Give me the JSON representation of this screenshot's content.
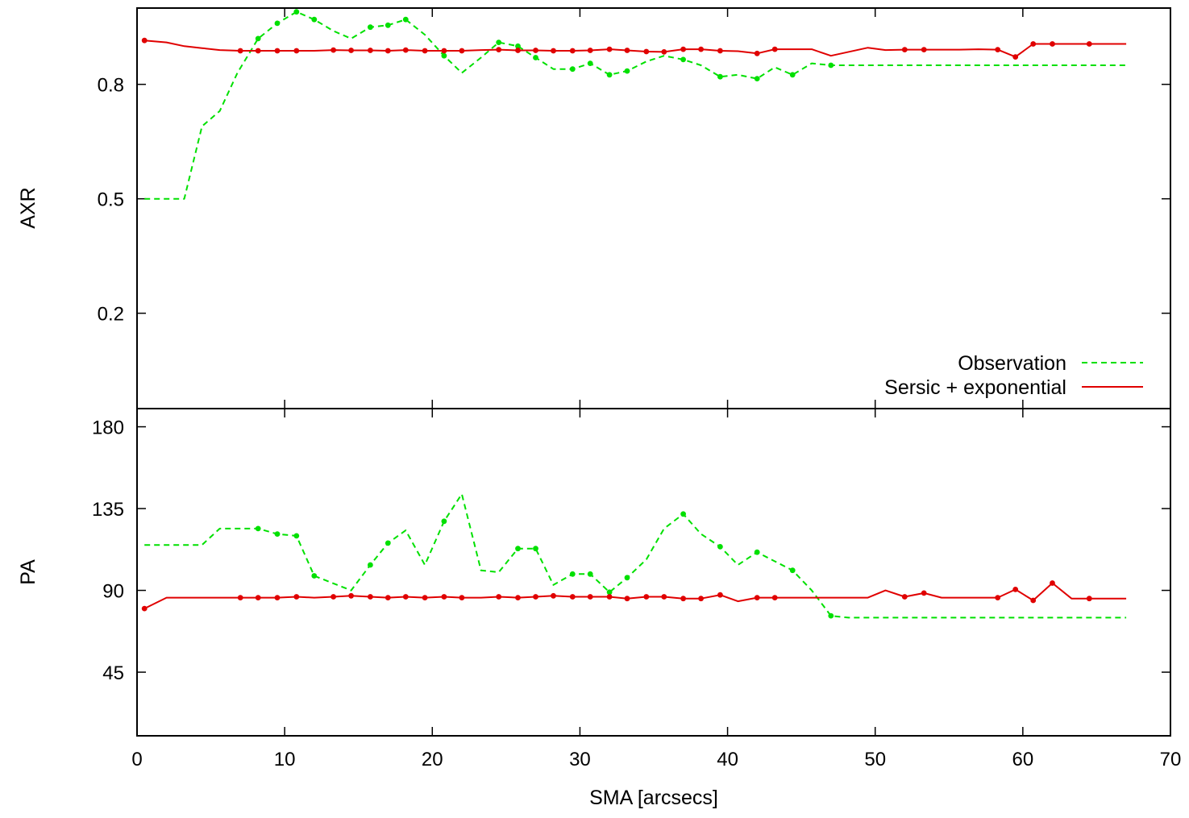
{
  "chart_data": [
    {
      "type": "line",
      "ylabel": "AXR",
      "xlabel": "",
      "xlim": [
        0,
        70
      ],
      "ylim": [
        -0.05,
        1.0
      ],
      "yticks": [
        0.2,
        0.5,
        0.8
      ],
      "ytick_labels": [
        "0.2",
        "0.5",
        "0.8"
      ],
      "xticks": [
        0,
        10,
        20,
        30,
        40,
        50,
        60,
        70
      ],
      "grid": false,
      "legend": "bottom-right",
      "legend_labels": [
        "Observation",
        "Sersic + exponential"
      ],
      "series": [
        {
          "name": "Observation",
          "color": "#00e000",
          "style": "dashed",
          "x": [
            0.5,
            3.2,
            4.4,
            5.6,
            6.8,
            8.2,
            9.5,
            10.8,
            12.0,
            13.3,
            14.5,
            15.8,
            17.0,
            18.2,
            19.5,
            20.8,
            22.0,
            23.3,
            24.5,
            25.8,
            27.0,
            28.2,
            29.5,
            30.7,
            32.0,
            33.2,
            34.5,
            35.7,
            37.0,
            38.2,
            39.5,
            40.7,
            42.0,
            43.2,
            44.4,
            45.7,
            47.0,
            67.0
          ],
          "y": [
            0.5,
            0.5,
            0.69,
            0.73,
            0.83,
            0.92,
            0.96,
            0.99,
            0.97,
            0.94,
            0.92,
            0.95,
            0.955,
            0.97,
            0.93,
            0.875,
            0.83,
            0.87,
            0.91,
            0.9,
            0.87,
            0.84,
            0.84,
            0.855,
            0.825,
            0.835,
            0.86,
            0.875,
            0.865,
            0.85,
            0.82,
            0.825,
            0.815,
            0.845,
            0.825,
            0.855,
            0.85,
            0.85
          ],
          "markers_x": [
            8.2,
            9.5,
            10.8,
            12.0,
            15.8,
            17.0,
            18.2,
            20.8,
            24.5,
            25.8,
            27.0,
            29.5,
            30.7,
            32.0,
            33.2,
            37.0,
            39.5,
            42.0,
            44.4,
            47.0
          ],
          "markers_y": [
            0.92,
            0.96,
            0.99,
            0.97,
            0.95,
            0.955,
            0.97,
            0.875,
            0.91,
            0.9,
            0.87,
            0.84,
            0.855,
            0.825,
            0.835,
            0.865,
            0.82,
            0.815,
            0.825,
            0.85
          ]
        },
        {
          "name": "Sersic + exponential",
          "color": "#e00000",
          "style": "solid",
          "x": [
            0.5,
            2.0,
            3.2,
            4.4,
            5.6,
            7.0,
            8.2,
            9.5,
            10.8,
            12.0,
            13.3,
            14.5,
            15.8,
            17.0,
            18.2,
            19.5,
            20.8,
            22.0,
            23.3,
            24.5,
            25.8,
            27.0,
            28.2,
            29.5,
            30.7,
            32.0,
            33.2,
            34.5,
            35.7,
            37.0,
            38.2,
            39.5,
            40.7,
            42.0,
            43.2,
            44.4,
            45.7,
            47.0,
            49.5,
            50.7,
            52.0,
            53.3,
            54.5,
            55.7,
            57.0,
            58.3,
            59.5,
            60.7,
            62.0,
            63.3,
            64.5,
            65.7,
            67.0
          ],
          "y": [
            0.915,
            0.91,
            0.9,
            0.895,
            0.89,
            0.888,
            0.888,
            0.888,
            0.888,
            0.888,
            0.89,
            0.889,
            0.889,
            0.888,
            0.89,
            0.888,
            0.888,
            0.888,
            0.89,
            0.891,
            0.889,
            0.889,
            0.888,
            0.888,
            0.889,
            0.892,
            0.889,
            0.886,
            0.885,
            0.892,
            0.892,
            0.888,
            0.887,
            0.881,
            0.892,
            0.892,
            0.892,
            0.875,
            0.896,
            0.89,
            0.891,
            0.891,
            0.891,
            0.891,
            0.892,
            0.891,
            0.872,
            0.906,
            0.906,
            0.906,
            0.906,
            0.906,
            0.906
          ],
          "markers_x": [
            0.5,
            7.0,
            8.2,
            9.5,
            10.8,
            13.3,
            14.5,
            15.8,
            17.0,
            18.2,
            19.5,
            20.8,
            22.0,
            24.5,
            25.8,
            27.0,
            28.2,
            29.5,
            30.7,
            32.0,
            33.2,
            34.5,
            35.7,
            37.0,
            38.2,
            39.5,
            42.0,
            43.2,
            52.0,
            53.3,
            58.3,
            59.5,
            60.7,
            62.0,
            64.5
          ],
          "markers_y": [
            0.915,
            0.888,
            0.888,
            0.888,
            0.888,
            0.89,
            0.889,
            0.889,
            0.888,
            0.89,
            0.888,
            0.888,
            0.888,
            0.891,
            0.889,
            0.889,
            0.888,
            0.888,
            0.889,
            0.892,
            0.889,
            0.886,
            0.885,
            0.892,
            0.892,
            0.888,
            0.881,
            0.892,
            0.891,
            0.891,
            0.891,
            0.872,
            0.906,
            0.906,
            0.906
          ]
        }
      ]
    },
    {
      "type": "line",
      "ylabel": "PA",
      "xlabel": "SMA [arcsecs]",
      "xlim": [
        0,
        70
      ],
      "ylim": [
        10,
        190
      ],
      "yticks": [
        45,
        90,
        135,
        180
      ],
      "ytick_labels": [
        "45",
        "90",
        "135",
        "180"
      ],
      "xticks": [
        0,
        10,
        20,
        30,
        40,
        50,
        60,
        70
      ],
      "xtick_labels": [
        "0",
        "10",
        "20",
        "30",
        "40",
        "50",
        "60",
        "70"
      ],
      "grid": false,
      "series": [
        {
          "name": "Observation",
          "color": "#00e000",
          "style": "dashed",
          "x": [
            0.5,
            4.4,
            5.6,
            7.0,
            8.2,
            9.5,
            10.8,
            12.0,
            14.5,
            15.8,
            17.0,
            18.2,
            19.5,
            20.8,
            22.0,
            23.3,
            24.5,
            25.8,
            27.0,
            28.2,
            29.5,
            30.7,
            32.0,
            33.2,
            34.5,
            35.7,
            37.0,
            38.2,
            39.5,
            40.7,
            42.0,
            43.2,
            44.4,
            45.7,
            47.0,
            48.2,
            67.0
          ],
          "y": [
            115,
            115,
            124,
            124,
            124,
            121,
            120,
            98,
            90,
            104,
            116,
            123,
            104,
            128,
            143,
            101,
            100,
            113,
            113,
            93,
            99,
            99,
            89,
            97,
            107,
            124,
            132,
            121,
            114,
            104,
            111,
            106,
            101,
            90,
            76,
            75,
            75
          ],
          "markers_x": [
            8.2,
            9.5,
            10.8,
            12.0,
            15.8,
            17.0,
            20.8,
            25.8,
            27.0,
            29.5,
            30.7,
            32.0,
            33.2,
            37.0,
            39.5,
            42.0,
            44.4,
            47.0
          ],
          "markers_y": [
            124,
            121,
            120,
            98,
            104,
            116,
            128,
            113,
            113,
            99,
            99,
            89,
            97,
            132,
            114,
            111,
            101,
            76
          ]
        },
        {
          "name": "Sersic + exponential",
          "color": "#e00000",
          "style": "solid",
          "x": [
            0.5,
            2.0,
            3.2,
            4.4,
            5.6,
            7.0,
            8.2,
            9.5,
            10.8,
            12.0,
            13.3,
            14.5,
            15.8,
            17.0,
            18.2,
            19.5,
            20.8,
            22.0,
            23.3,
            24.5,
            25.8,
            27.0,
            28.2,
            29.5,
            30.7,
            32.0,
            33.2,
            34.5,
            35.7,
            37.0,
            38.2,
            39.5,
            40.7,
            42.0,
            43.2,
            44.4,
            45.7,
            47.0,
            49.5,
            50.7,
            52.0,
            53.3,
            54.5,
            55.7,
            57.0,
            58.3,
            59.5,
            60.7,
            62.0,
            63.3,
            64.5,
            65.7,
            67.0
          ],
          "y": [
            80,
            86,
            86,
            86,
            86,
            86,
            86,
            86,
            86.5,
            86,
            86.5,
            87,
            86.5,
            86,
            86.5,
            86,
            86.5,
            86,
            86,
            86.5,
            86,
            86.5,
            87,
            86.5,
            86.5,
            86.5,
            85.5,
            86.5,
            86.5,
            85.5,
            85.5,
            87.5,
            84,
            86,
            86,
            86,
            86,
            86,
            86,
            90,
            86.5,
            88.5,
            86,
            86,
            86,
            86,
            90.5,
            84.5,
            94,
            85.5,
            85.5,
            85.5,
            85.5
          ],
          "markers_x": [
            0.5,
            7.0,
            8.2,
            9.5,
            10.8,
            13.3,
            14.5,
            15.8,
            17.0,
            18.2,
            19.5,
            20.8,
            22.0,
            24.5,
            25.8,
            27.0,
            28.2,
            29.5,
            30.7,
            32.0,
            33.2,
            34.5,
            35.7,
            37.0,
            38.2,
            39.5,
            42.0,
            43.2,
            52.0,
            53.3,
            58.3,
            59.5,
            60.7,
            62.0,
            64.5
          ],
          "markers_y": [
            80,
            86,
            86,
            86,
            86.5,
            86.5,
            87,
            86.5,
            86,
            86.5,
            86,
            86.5,
            86,
            86.5,
            86,
            86.5,
            87,
            86.5,
            86.5,
            86.5,
            85.5,
            86.5,
            86.5,
            85.5,
            85.5,
            87.5,
            86,
            86,
            86.5,
            88.5,
            86,
            90.5,
            84.5,
            94,
            85.5
          ]
        }
      ]
    }
  ]
}
